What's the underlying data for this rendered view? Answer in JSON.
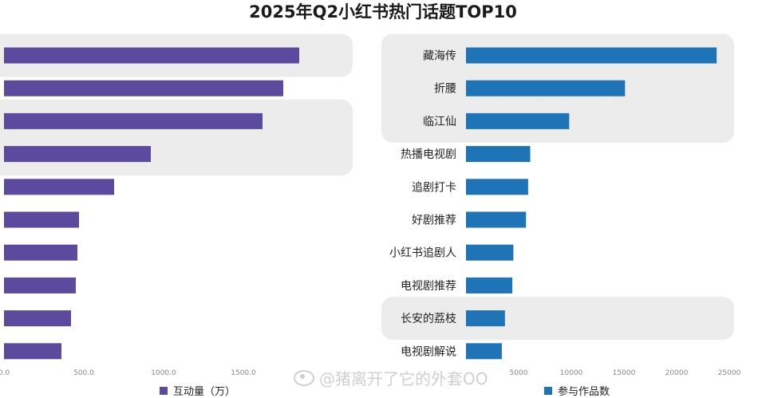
{
  "title": "2025年Q2小红书热门话题TOP10",
  "watermark": "@猪离开了它的外套OO",
  "colors": {
    "left_bar": "#5b4a9d",
    "right_bar": "#1f73b7",
    "highlight_band": "#ececec",
    "axis_text": "#888888"
  },
  "chart_data": [
    {
      "type": "bar",
      "orientation": "horizontal",
      "title": "",
      "legend": {
        "label": "互动量（万）",
        "placement": "bottom-left"
      },
      "categories": [
        "",
        "",
        "",
        "",
        "",
        "",
        "",
        "",
        "",
        ""
      ],
      "values": [
        1850,
        1750,
        1620,
        920,
        690,
        470,
        460,
        450,
        420,
        360
      ],
      "xlim": [
        0,
        2000
      ],
      "x_ticks": [
        "0.0",
        "500.0",
        "1000.0",
        "1500.0"
      ],
      "x_tick_values": [
        0,
        500,
        1000,
        1500
      ],
      "highlight_groups": [
        [
          0,
          0
        ],
        [
          2,
          3
        ]
      ]
    },
    {
      "type": "bar",
      "orientation": "horizontal",
      "title": "",
      "legend": {
        "label": "参与作品数",
        "placement": "bottom-left"
      },
      "categories": [
        "藏海传",
        "折腰",
        "临江仙",
        "热播电视剧",
        "追剧打卡",
        "好剧推荐",
        "小红书追剧人",
        "电视剧推荐",
        "长安的荔枝",
        "电视剧解说"
      ],
      "values": [
        23800,
        15100,
        9800,
        6100,
        5900,
        5700,
        4500,
        4400,
        3700,
        3400
      ],
      "xlim": [
        0,
        25000
      ],
      "x_ticks": [
        "5000",
        "10000",
        "15000",
        "20000",
        "25000"
      ],
      "x_tick_values": [
        5000,
        10000,
        15000,
        20000,
        25000
      ],
      "highlight_groups": [
        [
          0,
          2
        ],
        [
          8,
          8
        ]
      ]
    }
  ]
}
